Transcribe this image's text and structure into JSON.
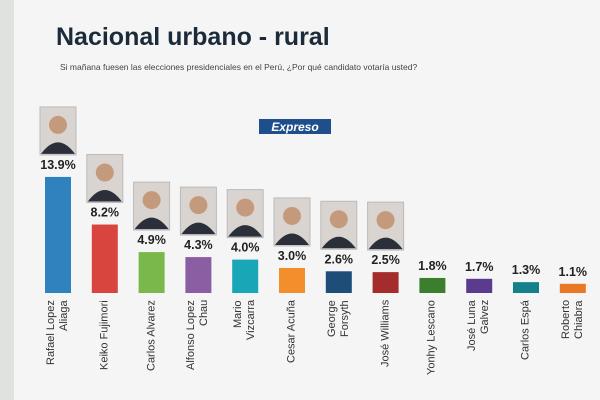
{
  "chart_data": {
    "type": "bar",
    "title": "Nacional urbano - rural",
    "subtitle": "Si mañana fuesen las elecciones presidenciales en el Perú, ¿Por qué candidato votaría usted?",
    "logo": "Expreso",
    "categories": [
      "Rafael Lopez\nAliaga",
      "Keiko Fujimori",
      "Carlos Alvarez",
      "Alfonso Lopez\nChau",
      "Mario\nVizcarra",
      "Cesar Acuña",
      "George\nForsyth",
      "José Williams",
      "Yonhy Lescano",
      "José Luna\nGalvez",
      "Carlos Espá",
      "Roberto\nChiabra"
    ],
    "values": [
      13.9,
      8.2,
      4.9,
      4.3,
      4.0,
      3.0,
      2.6,
      2.5,
      1.8,
      1.7,
      1.3,
      1.1
    ],
    "value_labels": [
      "13.9%",
      "8.2%",
      "4.9%",
      "4.3%",
      "4.0%",
      "3.0%",
      "2.6%",
      "2.5%",
      "1.8%",
      "1.7%",
      "1.3%",
      "1.1%"
    ],
    "colors": [
      "#2f82bd",
      "#d8453e",
      "#7bb84b",
      "#8b5ea4",
      "#19a6b6",
      "#f28e2b",
      "#1f4d7a",
      "#a52c2c",
      "#3b7f2e",
      "#5a3b8d",
      "#14808b",
      "#e97824"
    ]
  }
}
